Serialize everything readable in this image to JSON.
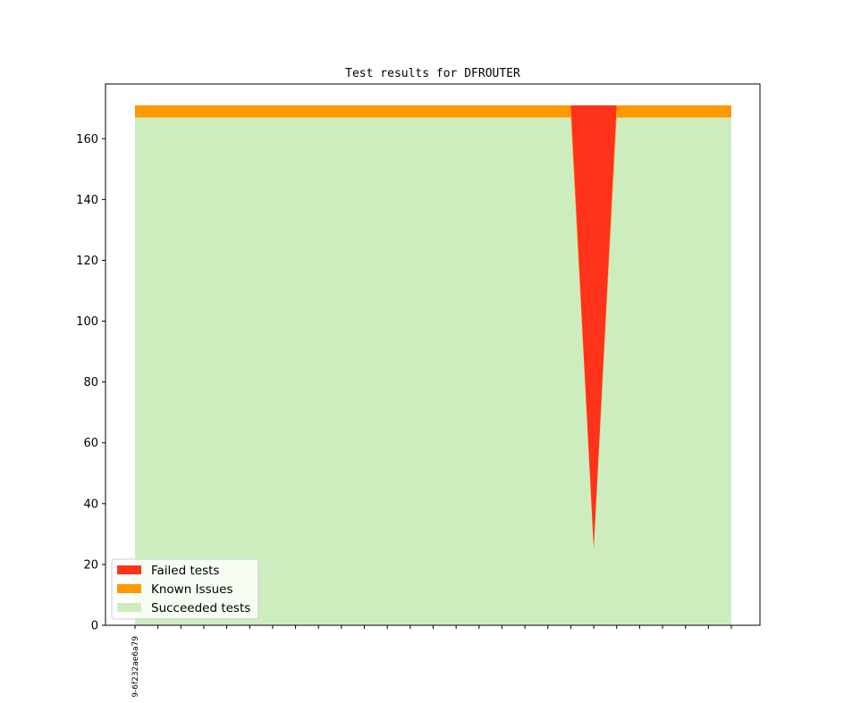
{
  "chart_data": {
    "type": "area",
    "title": "Test results for DFROUTER",
    "xlabel": "",
    "ylabel": "",
    "ylim": [
      0,
      178
    ],
    "yticks": [
      0,
      20,
      40,
      60,
      80,
      100,
      120,
      140,
      160
    ],
    "x_tick_count": 27,
    "x_tick_labels": [
      "9-6f232ae6a79"
    ],
    "legend_position": "lower left",
    "grid": false,
    "stacking": "stacked",
    "series": [
      {
        "name": "Succeeded tests",
        "color": "#ceedbf",
        "values": [
          167,
          167,
          167,
          167,
          167,
          167,
          167,
          167,
          167,
          167,
          167,
          167,
          167,
          167,
          167,
          167,
          167,
          167,
          167,
          167,
          25,
          167,
          167,
          167,
          167,
          167,
          167
        ]
      },
      {
        "name": "Known Issues",
        "color": "#ff9900",
        "values": [
          4,
          4,
          4,
          4,
          4,
          4,
          4,
          4,
          4,
          4,
          4,
          4,
          4,
          4,
          4,
          4,
          4,
          4,
          4,
          4,
          0,
          4,
          4,
          4,
          4,
          4,
          4
        ]
      },
      {
        "name": "Failed tests",
        "color": "#ff3319",
        "values": [
          0,
          0,
          0,
          0,
          0,
          0,
          0,
          0,
          0,
          0,
          0,
          0,
          0,
          0,
          0,
          0,
          0,
          0,
          0,
          0,
          146,
          0,
          0,
          0,
          0,
          0,
          0
        ]
      }
    ],
    "legend_order": [
      "Failed tests",
      "Known Issues",
      "Succeeded tests"
    ]
  }
}
